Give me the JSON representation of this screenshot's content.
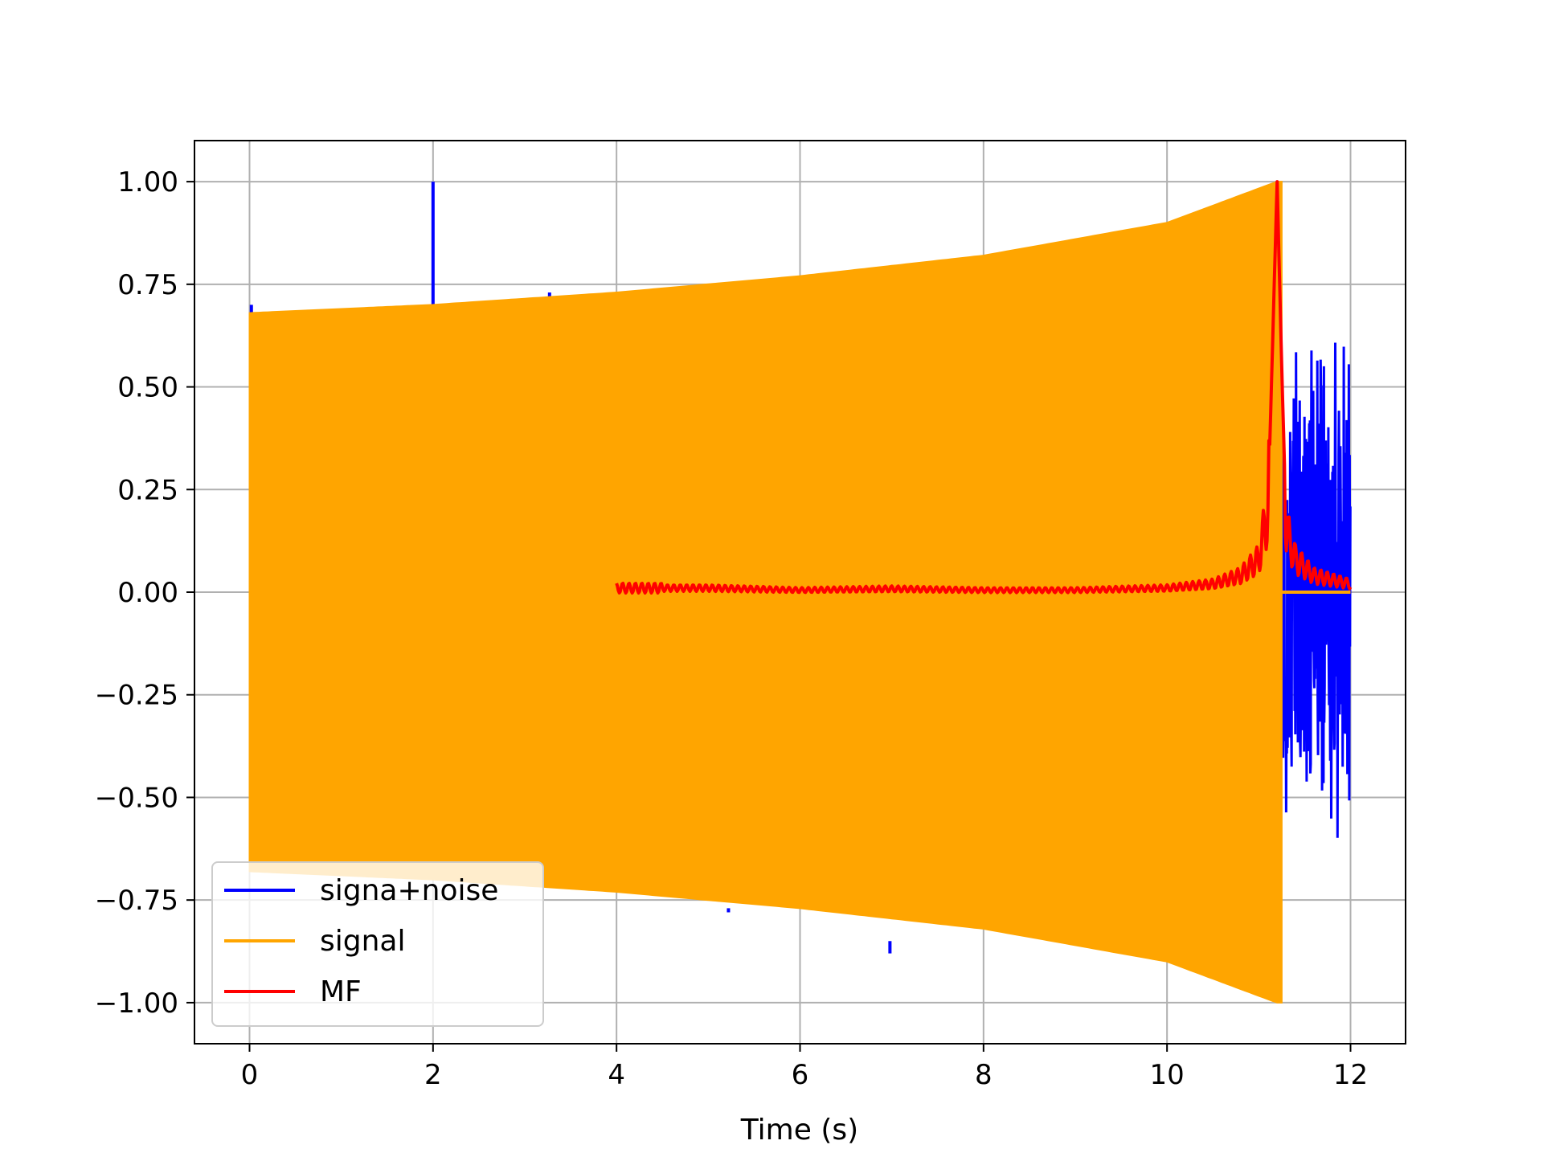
{
  "chart_data": {
    "type": "line",
    "title": "",
    "xlabel": "Time (s)",
    "ylabel": "",
    "xlim": [
      -0.6,
      12.6
    ],
    "ylim": [
      -1.1,
      1.1
    ],
    "xticks": [
      0,
      2,
      4,
      6,
      8,
      10,
      12
    ],
    "xtick_labels": [
      "0",
      "2",
      "4",
      "6",
      "8",
      "10",
      "12"
    ],
    "yticks": [
      1.0,
      0.75,
      0.5,
      0.25,
      0.0,
      -0.25,
      -0.5,
      -0.75,
      -1.0
    ],
    "ytick_labels": [
      "1.00",
      "0.75",
      "0.50",
      "0.25",
      "0.00",
      "−0.25",
      "−0.50",
      "−0.75",
      "−1.00"
    ],
    "grid": true,
    "legend_position": "lower-left",
    "series": [
      {
        "name": "signa+noise",
        "color": "#0000ff",
        "description_points": {
          "spikes": [
            {
              "x": 0.02,
              "y_top": 0.7,
              "y_bottom": -0.6
            },
            {
              "x": 2.0,
              "y_top": 1.0,
              "y_bottom": 0.68
            },
            {
              "x": 3.27,
              "y_top": 0.73,
              "y_bottom": 0.7
            },
            {
              "x": 5.22,
              "y_top": -0.77,
              "y_bottom": -0.78
            },
            {
              "x": 6.98,
              "y_top": -0.85,
              "y_bottom": -0.88
            }
          ],
          "tail_range": [
            11.25,
            12.0
          ],
          "tail_max": 0.66,
          "tail_min": -0.66
        }
      },
      {
        "name": "signal",
        "color": "#ffa500",
        "envelope": {
          "x": [
            0,
            2,
            4,
            6,
            8,
            10,
            11.2
          ],
          "amplitude": [
            0.68,
            0.7,
            0.73,
            0.77,
            0.82,
            0.9,
            1.0
          ]
        },
        "x_range": [
          0,
          11.25
        ]
      },
      {
        "name": "MF",
        "color": "#ff0000",
        "x": [
          4.0,
          5.0,
          6.0,
          7.0,
          8.0,
          9.0,
          10.0,
          10.5,
          10.8,
          11.0,
          11.1,
          11.15,
          11.2,
          11.25,
          11.3,
          11.4,
          11.6,
          11.8,
          12.0
        ],
        "y": [
          0.01,
          0.01,
          0.005,
          0.008,
          0.005,
          0.005,
          0.01,
          0.02,
          0.04,
          0.08,
          0.2,
          0.6,
          1.0,
          0.55,
          0.15,
          0.08,
          0.04,
          0.03,
          0.02
        ]
      }
    ]
  }
}
